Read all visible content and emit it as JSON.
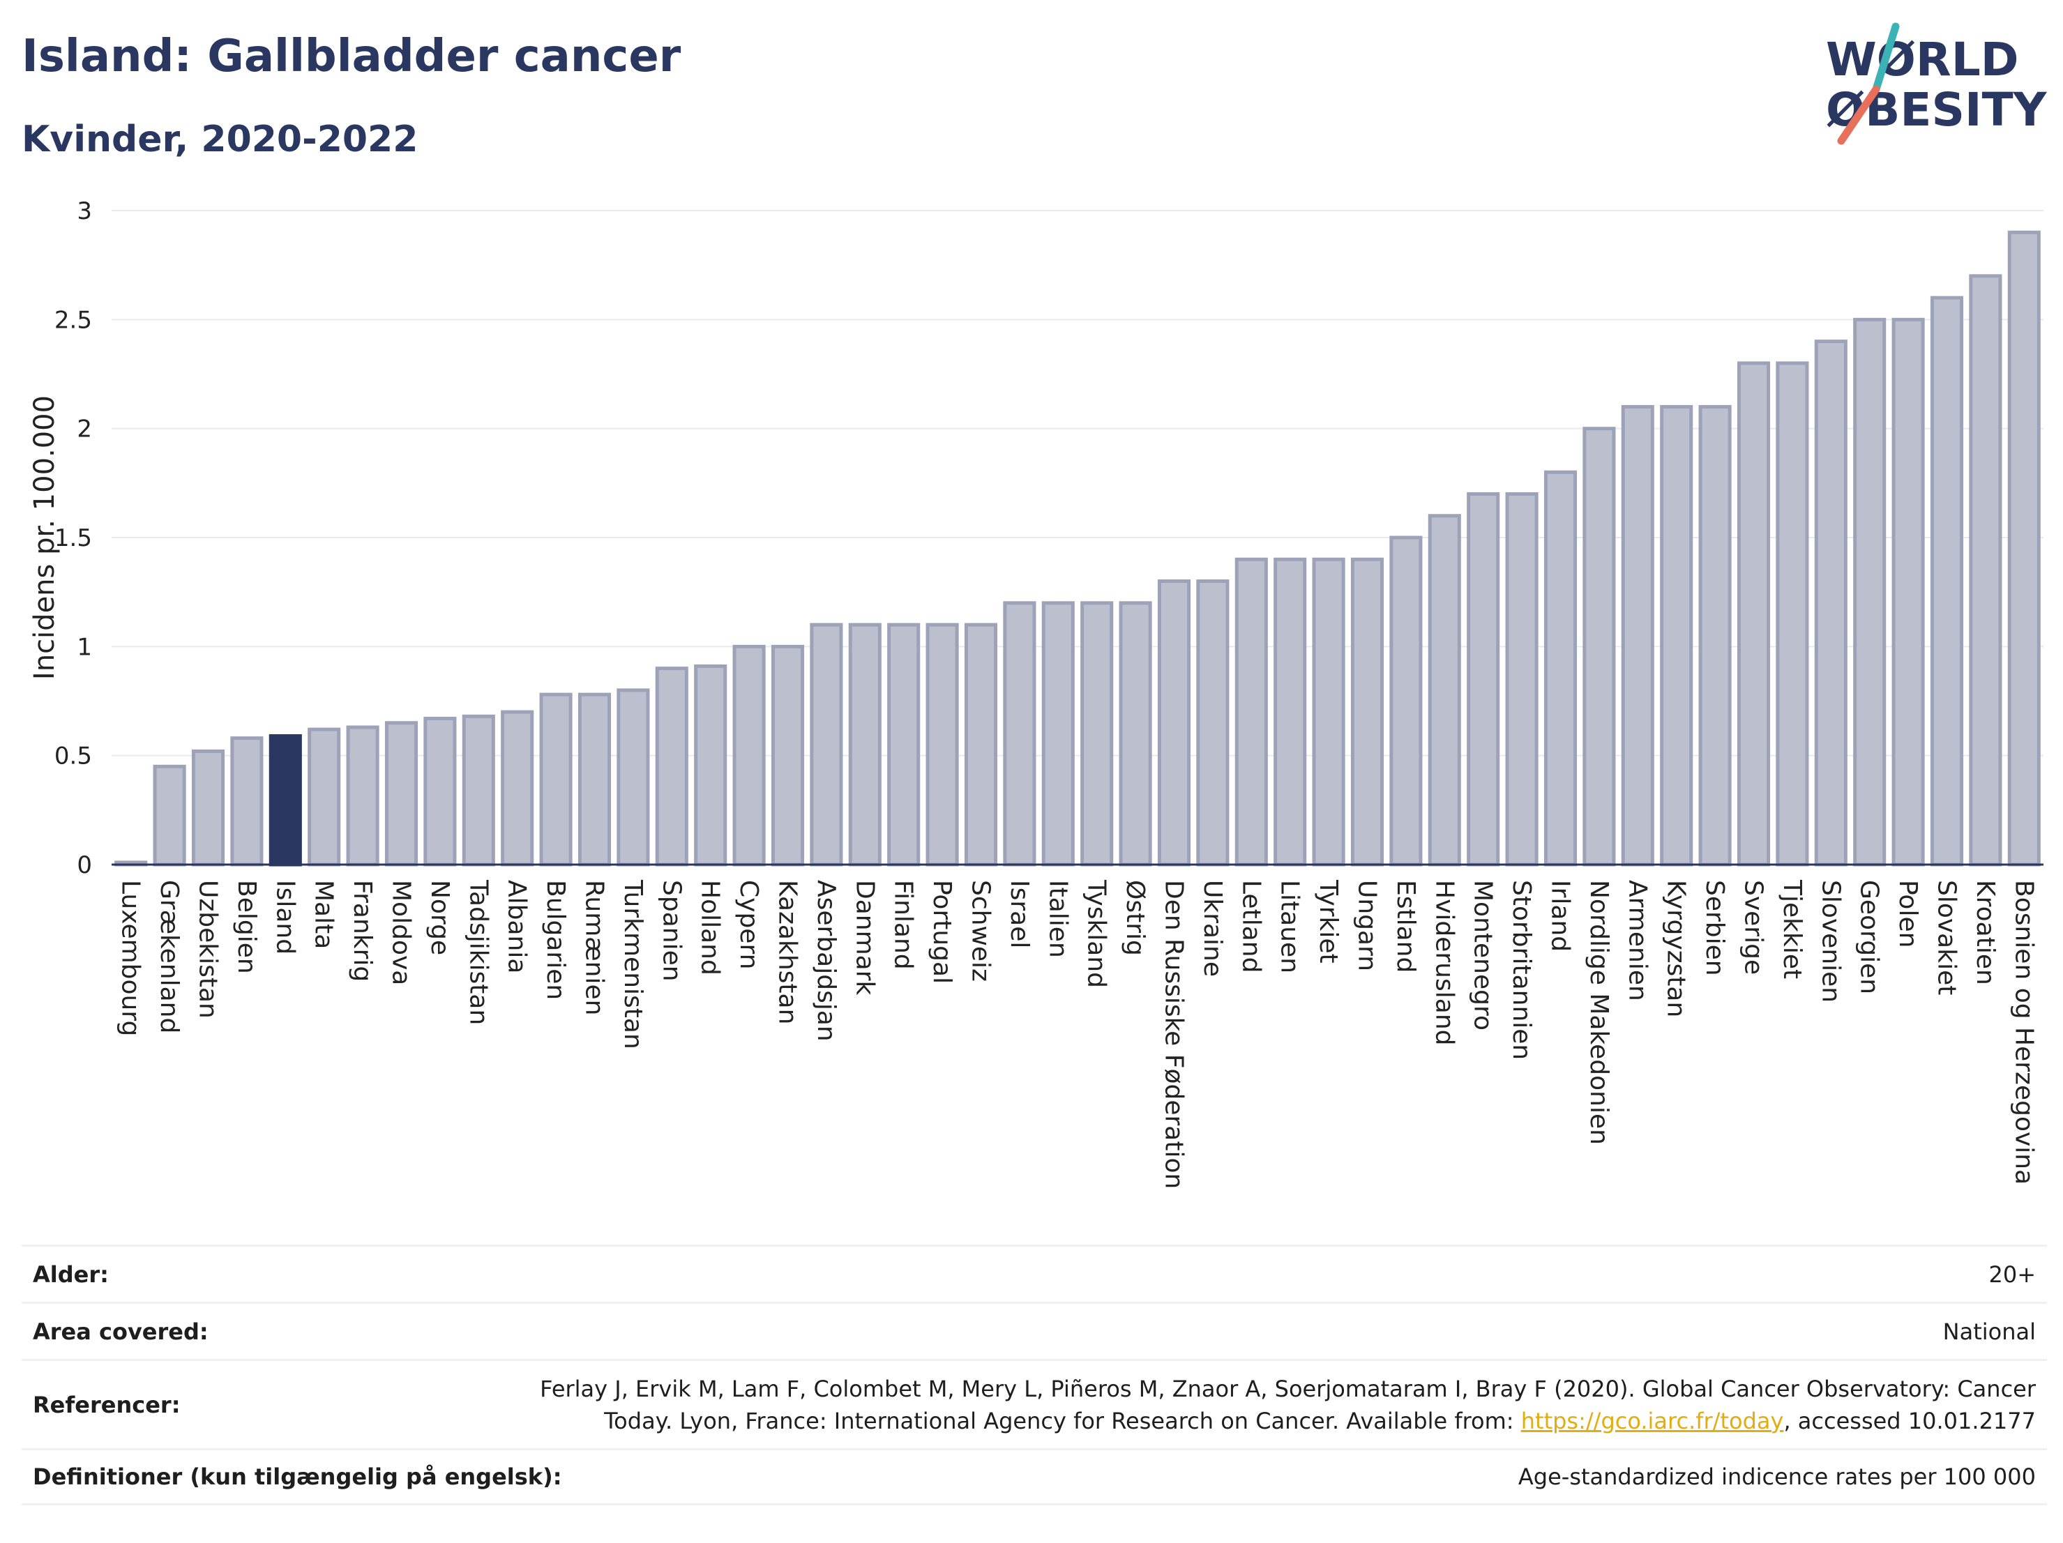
{
  "header": {
    "title": "Island: Gallbladder cancer",
    "subtitle": "Kvinder, 2020-2022"
  },
  "logo": {
    "line1": "WØRLD",
    "line2": "ØBESITY",
    "colors": {
      "text": "#2a3761",
      "slash_top": "#3bb3b5",
      "slash_bottom": "#e8705a"
    }
  },
  "chart_data": {
    "type": "bar",
    "ylabel": "Incidens pr. 100.000",
    "ylim": [
      0,
      3
    ],
    "yticks": [
      0,
      0.5,
      1,
      1.5,
      2,
      2.5,
      3
    ],
    "ytick_labels": [
      "0",
      "0.5",
      "1",
      "1.5",
      "2",
      "2.5",
      "3"
    ],
    "grid": true,
    "highlight": "Island",
    "colors": {
      "bar": "#bcc0ce",
      "bar_edge": "#9da2b8",
      "highlight": "#2a3761",
      "axis": "#2a3761"
    },
    "categories": [
      "Luxembourg",
      "Grækenland",
      "Uzbekistan",
      "Belgien",
      "Island",
      "Malta",
      "Frankrig",
      "Moldova",
      "Norge",
      "Tadsjikistan",
      "Albania",
      "Bulgarien",
      "Rumænien",
      "Turkmenistan",
      "Spanien",
      "Holland",
      "Cypern",
      "Kazakhstan",
      "Aserbajdsjan",
      "Danmark",
      "Finland",
      "Portugal",
      "Schweiz",
      "Israel",
      "Italien",
      "Tyskland",
      "Østrig",
      "Den Russiske Føderation",
      "Ukraine",
      "Letland",
      "Litauen",
      "Tyrkiet",
      "Ungarn",
      "Estland",
      "Hviderusland",
      "Montenegro",
      "Storbritannien",
      "Irland",
      "Nordlige Makedonien",
      "Armenien",
      "Kyrgyzstan",
      "Serbien",
      "Sverige",
      "Tjekkiet",
      "Slovenien",
      "Georgien",
      "Polen",
      "Slovakiet",
      "Kroatien",
      "Bosnien og Herzegovina"
    ],
    "values": [
      0.01,
      0.45,
      0.52,
      0.58,
      0.59,
      0.62,
      0.63,
      0.65,
      0.67,
      0.68,
      0.7,
      0.78,
      0.78,
      0.8,
      0.9,
      0.91,
      1.0,
      1.0,
      1.1,
      1.1,
      1.1,
      1.1,
      1.1,
      1.2,
      1.2,
      1.2,
      1.2,
      1.3,
      1.3,
      1.4,
      1.4,
      1.4,
      1.4,
      1.5,
      1.6,
      1.7,
      1.7,
      1.8,
      2.0,
      2.1,
      2.1,
      2.1,
      2.3,
      2.3,
      2.4,
      2.5,
      2.5,
      2.6,
      2.7,
      2.9
    ]
  },
  "info": {
    "age_label": "Alder:",
    "age_value": "20+",
    "area_label": "Area covered:",
    "area_value": "National",
    "ref_label": "Referencer:",
    "ref_text_1": "Ferlay J, Ervik M, Lam F, Colombet M, Mery L, Piñeros M, Znaor A, Soerjomataram I, Bray F (2020). Global Cancer Observatory: Cancer",
    "ref_text_2": "Today. Lyon, France: International Agency for Research on Cancer. Available from: ",
    "ref_link": "https://gco.iarc.fr/today",
    "ref_text_3": ", accessed 10.01.2177",
    "def_label": "Definitioner (kun tilgængelig på engelsk):",
    "def_value": "Age-standardized indicence rates per 100 000"
  }
}
